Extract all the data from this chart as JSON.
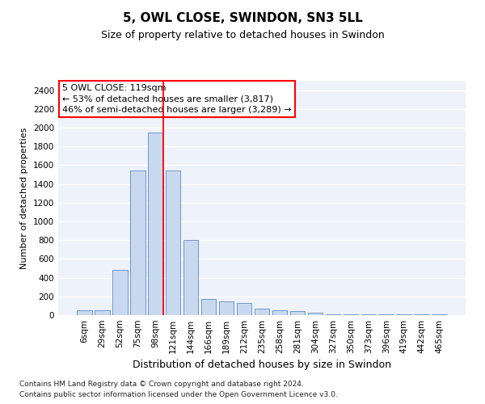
{
  "title": "5, OWL CLOSE, SWINDON, SN3 5LL",
  "subtitle": "Size of property relative to detached houses in Swindon",
  "xlabel": "Distribution of detached houses by size in Swindon",
  "ylabel": "Number of detached properties",
  "categories": [
    "6sqm",
    "29sqm",
    "52sqm",
    "75sqm",
    "98sqm",
    "121sqm",
    "144sqm",
    "166sqm",
    "189sqm",
    "212sqm",
    "235sqm",
    "258sqm",
    "281sqm",
    "304sqm",
    "327sqm",
    "350sqm",
    "373sqm",
    "396sqm",
    "419sqm",
    "442sqm",
    "465sqm"
  ],
  "values": [
    50,
    50,
    480,
    1540,
    1950,
    1540,
    800,
    170,
    150,
    130,
    70,
    50,
    40,
    30,
    10,
    10,
    5,
    5,
    5,
    5,
    5
  ],
  "bar_color": "#c8d9ef",
  "bar_edge_color": "#5b8cc8",
  "red_line_index": 4.43,
  "annotation_text": "5 OWL CLOSE: 119sqm\n← 53% of detached houses are smaller (3,817)\n46% of semi-detached houses are larger (3,289) →",
  "ylim": [
    0,
    2500
  ],
  "yticks": [
    0,
    200,
    400,
    600,
    800,
    1000,
    1200,
    1400,
    1600,
    1800,
    2000,
    2200,
    2400
  ],
  "bg_color": "#eef2fa",
  "grid_color": "#ffffff",
  "footer1": "Contains HM Land Registry data © Crown copyright and database right 2024.",
  "footer2": "Contains public sector information licensed under the Open Government Licence v3.0.",
  "title_fontsize": 11,
  "subtitle_fontsize": 9,
  "xlabel_fontsize": 9,
  "ylabel_fontsize": 8,
  "tick_fontsize": 7.5,
  "annot_fontsize": 8,
  "footer_fontsize": 6.5
}
